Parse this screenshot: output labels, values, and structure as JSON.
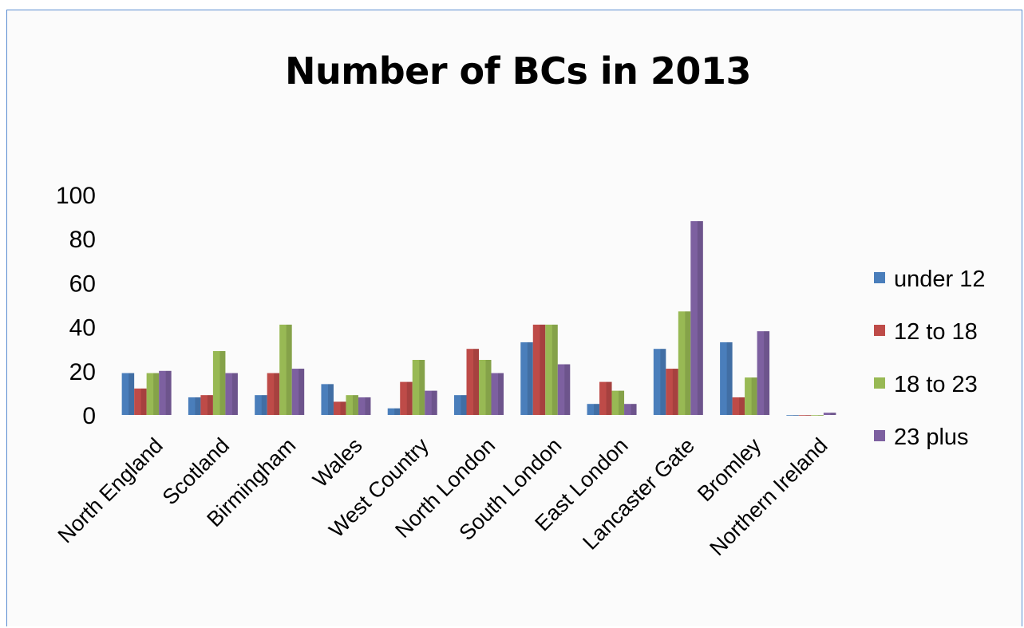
{
  "chart_data": {
    "type": "bar",
    "title": "Number of BCs in 2013",
    "xlabel": "",
    "ylabel": "",
    "ylim": [
      0,
      100
    ],
    "yticks": [
      0,
      20,
      40,
      60,
      80,
      100
    ],
    "grid": false,
    "legend_position": "right",
    "categories": [
      "North England",
      "Scotland",
      "Birmingham",
      "Wales",
      "West Country",
      "North London",
      "South London",
      "East London",
      "Lancaster Gate",
      "Bromley",
      "Northern Ireland"
    ],
    "series": [
      {
        "name": "under 12",
        "color": "#4a7ebb",
        "values": [
          19,
          8,
          9,
          14,
          3,
          9,
          33,
          5,
          30,
          33,
          0
        ]
      },
      {
        "name": "12 to 18",
        "color": "#be4b48",
        "values": [
          12,
          9,
          19,
          6,
          15,
          30,
          41,
          15,
          21,
          8,
          0
        ]
      },
      {
        "name": "18 to 23",
        "color": "#98b954",
        "values": [
          19,
          29,
          41,
          9,
          25,
          25,
          41,
          11,
          47,
          17,
          0
        ]
      },
      {
        "name": "23 plus",
        "color": "#7d60a0",
        "values": [
          20,
          19,
          21,
          8,
          11,
          19,
          23,
          5,
          88,
          38,
          1
        ]
      }
    ]
  }
}
